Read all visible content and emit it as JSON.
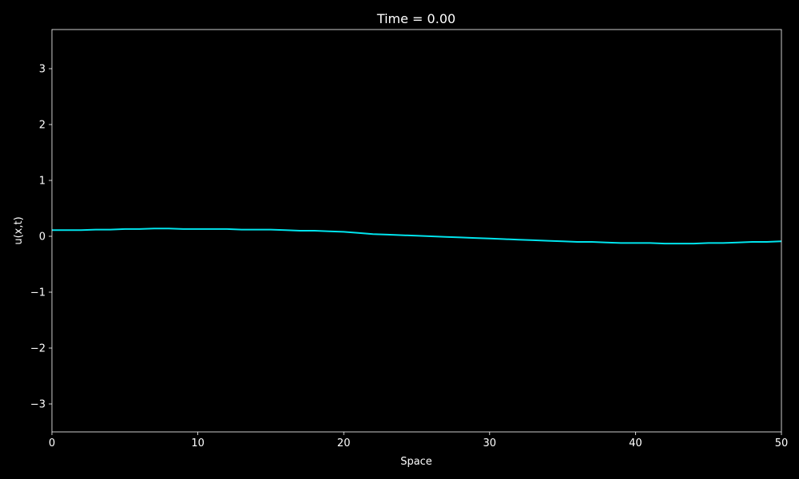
{
  "chart_data": {
    "type": "line",
    "title": "Time = 0.00",
    "xlabel": "Space",
    "ylabel": "u(x,t)",
    "xlim": [
      0,
      50
    ],
    "ylim": [
      -3.5,
      3.7
    ],
    "xticks": [
      0,
      10,
      20,
      30,
      40,
      50
    ],
    "xtick_labels": [
      "0",
      "10",
      "20",
      "30",
      "40",
      "50"
    ],
    "yticks": [
      -3,
      -2,
      -1,
      0,
      1,
      2,
      3
    ],
    "ytick_labels": [
      "−3",
      "−2",
      "−1",
      "0",
      "1",
      "2",
      "3"
    ],
    "grid": false,
    "series": [
      {
        "color": "#00e5ee",
        "x": [
          0,
          1,
          2,
          3,
          4,
          5,
          6,
          7,
          8,
          9,
          10,
          11,
          12,
          13,
          14,
          15,
          16,
          17,
          18,
          19,
          20,
          21,
          22,
          23,
          24,
          25,
          26,
          27,
          28,
          29,
          30,
          31,
          32,
          33,
          34,
          35,
          36,
          37,
          38,
          39,
          40,
          41,
          42,
          43,
          44,
          45,
          46,
          47,
          48,
          49,
          50
        ],
        "y": [
          0.11,
          0.11,
          0.11,
          0.12,
          0.12,
          0.13,
          0.13,
          0.14,
          0.14,
          0.13,
          0.13,
          0.13,
          0.13,
          0.12,
          0.12,
          0.12,
          0.11,
          0.1,
          0.1,
          0.09,
          0.08,
          0.06,
          0.04,
          0.03,
          0.02,
          0.01,
          0.0,
          -0.01,
          -0.02,
          -0.03,
          -0.04,
          -0.05,
          -0.06,
          -0.07,
          -0.08,
          -0.09,
          -0.1,
          -0.1,
          -0.11,
          -0.12,
          -0.12,
          -0.12,
          -0.13,
          -0.13,
          -0.13,
          -0.12,
          -0.12,
          -0.11,
          -0.1,
          -0.1,
          -0.09
        ]
      }
    ]
  }
}
